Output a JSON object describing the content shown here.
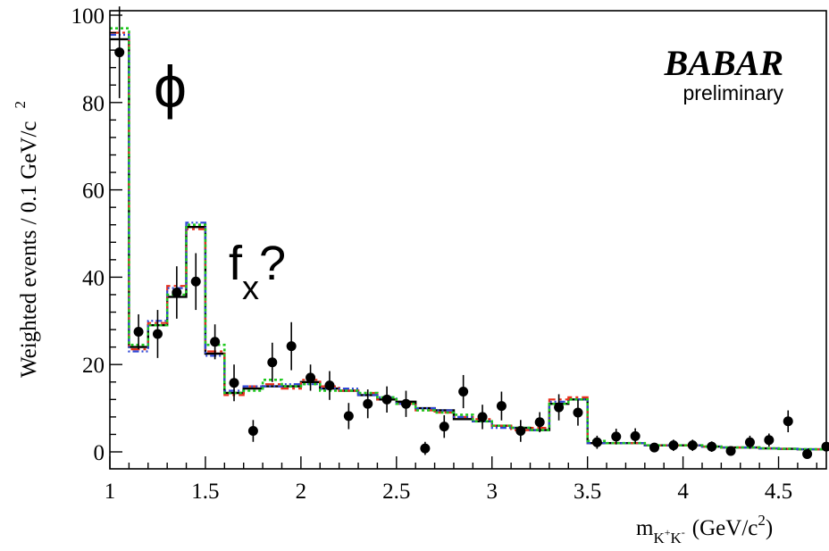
{
  "chart_data": {
    "type": "scatter",
    "xlabel": "m",
    "xlabel_sub": "K",
    "xlabel_sub_sup1": "+",
    "xlabel_sub_mid": "K",
    "xlabel_sub_sup2": "-",
    "xlabel_units": "(GeV/c",
    "xlabel_units_sup": "2",
    "xlabel_units_close": ")",
    "ylabel": "Weighted events / 0.1 GeV/c",
    "ylabel_sup": "2",
    "xlim": [
      1.0,
      4.75
    ],
    "ylim": [
      -4,
      101
    ],
    "x_ticks": [
      1,
      1.5,
      2,
      2.5,
      3,
      3.5,
      4,
      4.5
    ],
    "x_tick_labels": [
      "1",
      "1.5",
      "2",
      "2.5",
      "3",
      "3.5",
      "4",
      "4.5"
    ],
    "y_ticks": [
      0,
      20,
      40,
      60,
      80,
      100
    ],
    "y_tick_labels": [
      "0",
      "20",
      "40",
      "60",
      "80",
      "100"
    ],
    "bin_edges": [
      1.0,
      1.1,
      1.2,
      1.3,
      1.4,
      1.5,
      1.6,
      1.7,
      1.8,
      1.9,
      2.0,
      2.1,
      2.2,
      2.3,
      2.4,
      2.5,
      2.6,
      2.7,
      2.8,
      2.9,
      3.0,
      3.1,
      3.2,
      3.3,
      3.4,
      3.5,
      3.6,
      3.7,
      3.8,
      3.9,
      4.0,
      4.1,
      4.2,
      4.3,
      4.4,
      4.5,
      4.6,
      4.7,
      4.75
    ],
    "data_points": {
      "x": [
        1.05,
        1.15,
        1.25,
        1.35,
        1.45,
        1.55,
        1.65,
        1.75,
        1.85,
        1.95,
        2.05,
        2.15,
        2.25,
        2.35,
        2.45,
        2.55,
        2.65,
        2.75,
        2.85,
        2.95,
        3.05,
        3.15,
        3.25,
        3.35,
        3.45,
        3.55,
        3.65,
        3.75,
        3.85,
        3.95,
        4.05,
        4.15,
        4.25,
        4.35,
        4.45,
        4.55,
        4.65,
        4.75
      ],
      "y": [
        91.5,
        27.5,
        27.0,
        36.5,
        39.0,
        25.2,
        15.8,
        4.8,
        20.5,
        24.2,
        17.0,
        15.2,
        8.2,
        11.0,
        12.0,
        11.0,
        0.8,
        5.8,
        13.8,
        8.0,
        10.5,
        4.8,
        6.8,
        10.2,
        9.0,
        2.2,
        3.5,
        3.6,
        1.0,
        1.5,
        1.5,
        1.2,
        0.2,
        2.2,
        2.7,
        7.0,
        -0.5,
        1.2
      ],
      "err": [
        10.5,
        4.0,
        5.5,
        6.0,
        6.5,
        4.0,
        4.2,
        2.5,
        4.5,
        5.5,
        3.0,
        3.3,
        3.0,
        3.3,
        3.0,
        3.0,
        1.5,
        2.6,
        3.8,
        2.8,
        3.3,
        2.5,
        2.3,
        3.0,
        3.0,
        1.5,
        1.8,
        1.8,
        1.0,
        1.3,
        1.3,
        1.2,
        0.8,
        1.5,
        1.5,
        2.5,
        1.0,
        1.0
      ]
    },
    "series": [
      {
        "color": "#000000",
        "values": [
          94.5,
          24.0,
          29.0,
          35.5,
          51.5,
          22.5,
          13.5,
          14.5,
          15.0,
          15.0,
          16.0,
          14.5,
          14.0,
          13.0,
          12.0,
          11.5,
          10.0,
          9.5,
          7.5,
          7.0,
          6.0,
          5.5,
          5.0,
          11.0,
          12.0,
          2.0,
          2.0,
          2.0,
          1.5,
          1.5,
          1.5,
          1.2,
          1.0,
          1.0,
          0.8,
          0.7,
          0.6,
          0.6
        ]
      },
      {
        "color": "#e8301c",
        "values": [
          96.0,
          23.5,
          29.5,
          38.0,
          51.0,
          23.0,
          13.0,
          15.0,
          15.5,
          14.5,
          16.5,
          15.0,
          14.0,
          13.5,
          12.0,
          11.0,
          9.5,
          9.0,
          8.0,
          7.5,
          6.0,
          5.0,
          5.5,
          12.0,
          12.5,
          2.0,
          2.0,
          2.0,
          1.5,
          1.5,
          1.5,
          1.2,
          1.0,
          1.0,
          0.8,
          0.7,
          0.6,
          0.6
        ]
      },
      {
        "color": "#2e46d6",
        "values": [
          95.5,
          23.0,
          30.0,
          37.5,
          52.5,
          22.0,
          14.0,
          15.0,
          15.0,
          15.5,
          15.5,
          14.5,
          14.5,
          13.0,
          12.5,
          11.0,
          10.0,
          9.5,
          8.0,
          7.0,
          5.5,
          5.5,
          5.0,
          11.5,
          12.0,
          2.0,
          2.0,
          2.0,
          1.5,
          1.5,
          1.5,
          1.2,
          1.0,
          1.0,
          0.8,
          0.7,
          0.6,
          0.6
        ]
      },
      {
        "color": "#1ec81e",
        "values": [
          97.0,
          24.5,
          29.0,
          36.0,
          52.0,
          24.5,
          13.5,
          14.0,
          16.5,
          15.0,
          15.5,
          14.0,
          14.0,
          13.5,
          12.5,
          11.0,
          9.5,
          9.0,
          8.5,
          7.0,
          6.0,
          5.5,
          5.0,
          11.0,
          12.0,
          2.5,
          2.0,
          2.0,
          1.5,
          1.5,
          1.5,
          1.2,
          1.0,
          1.0,
          0.8,
          0.7,
          0.6,
          0.6
        ]
      }
    ],
    "annotations": {
      "phi": "ϕ",
      "fx_f": "f",
      "fx_sub": "x",
      "fx_q": "?",
      "logo": "BABAR",
      "preliminary": "preliminary"
    }
  }
}
